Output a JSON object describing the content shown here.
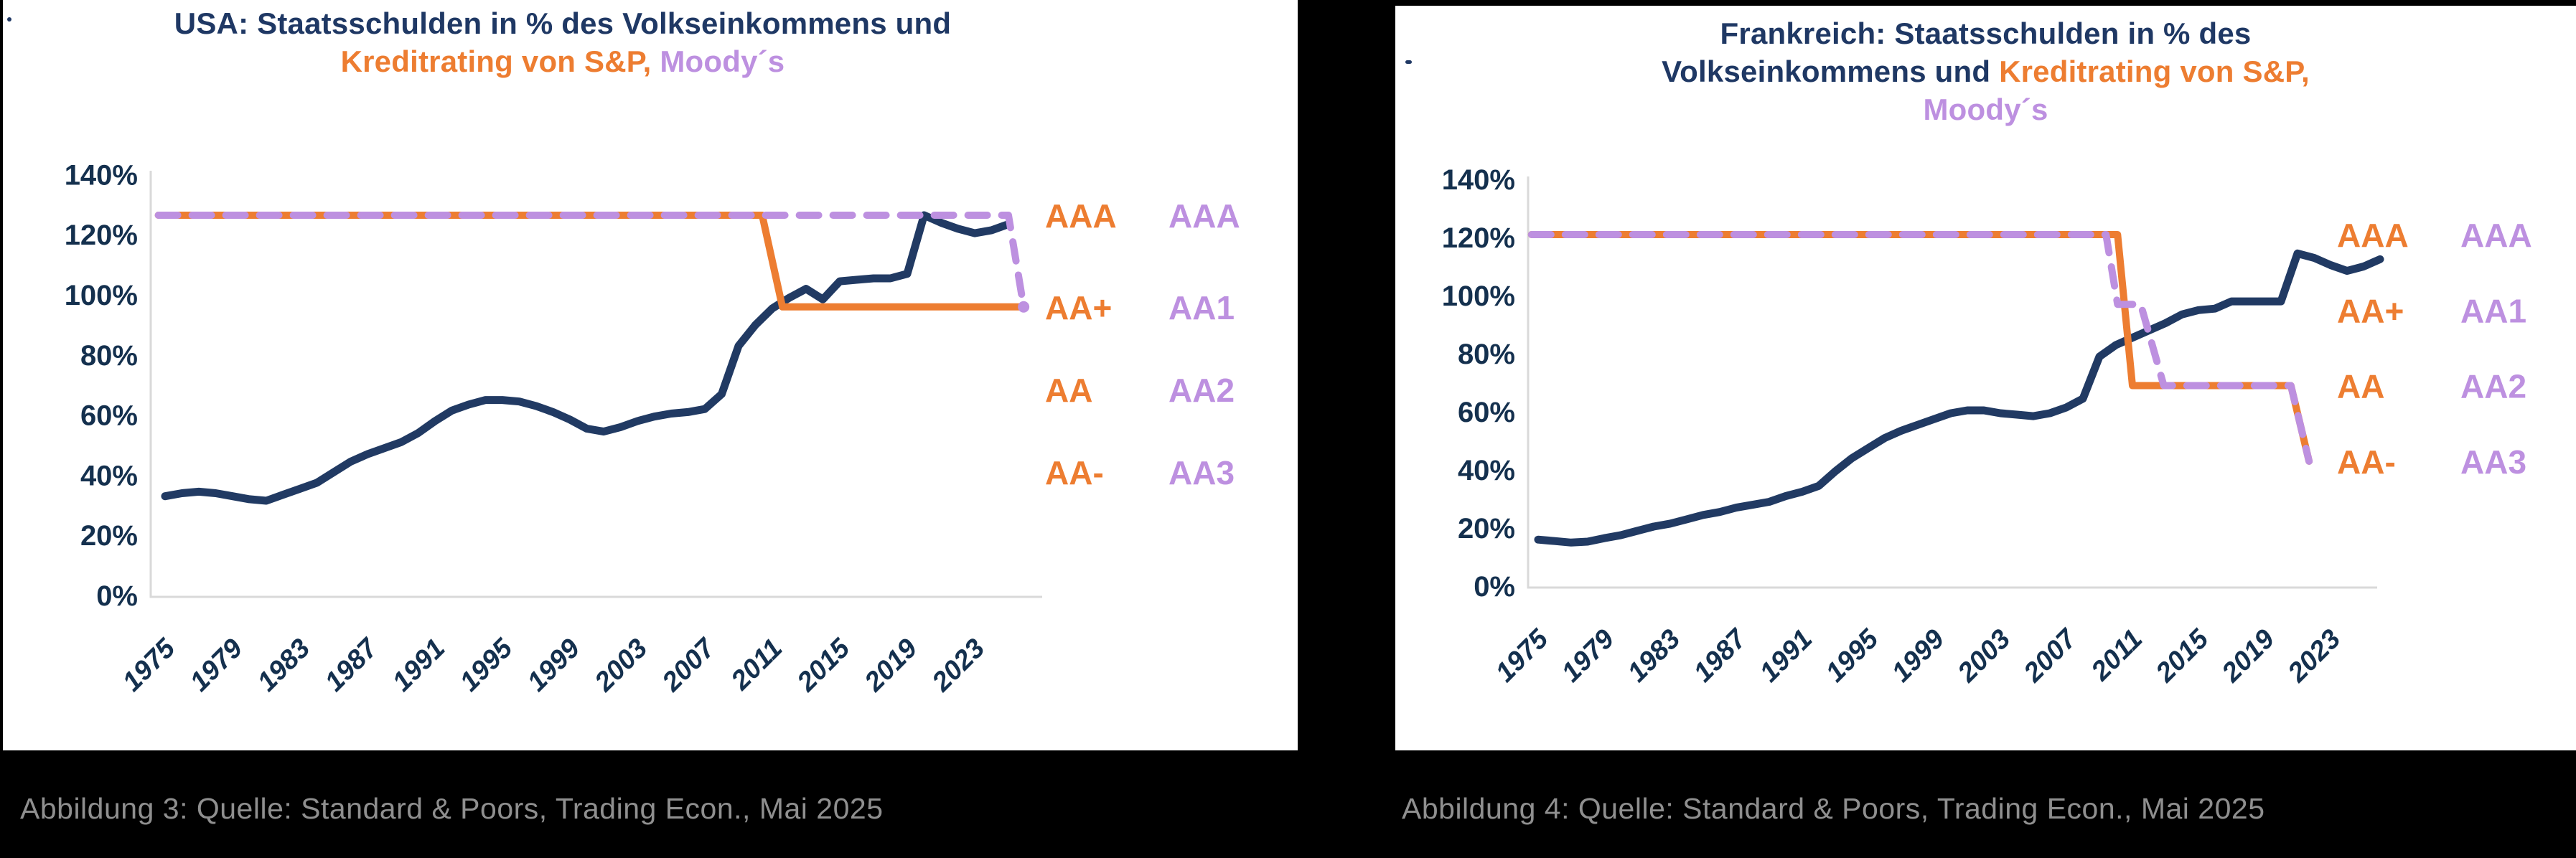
{
  "colors": {
    "navy": "#1F3864",
    "navy_tick": "#14304E",
    "navy_line": "#213A63",
    "orange": "#ED7D31",
    "purple": "#BD90E0",
    "axis_gray": "#D9D9D9",
    "caption_gray": "#8F8F8F",
    "card_bg": "#FFFFFF",
    "page_bg": "#000000"
  },
  "cards": [
    {
      "caption": "Abbildung 3: Quelle: Standard & Poors, Trading Econ., Mai 2025",
      "title_lines": [
        [
          {
            "t": "USA: Staatsschulden in % des Volkseinkommens und",
            "c": "navy"
          }
        ],
        [
          {
            "t": "Kreditrating von S&P, ",
            "c": "orange"
          },
          {
            "t": "Moody´s",
            "c": "purple"
          }
        ]
      ]
    },
    {
      "caption": "Abbildung 4: Quelle: Standard & Poors, Trading Econ., Mai 2025",
      "title_lines": [
        [
          {
            "t": "Frankreich: Staatsschulden in % des",
            "c": "navy"
          }
        ],
        [
          {
            "t": "Volkseinkommens und ",
            "c": "navy"
          },
          {
            "t": "Kreditrating von S&P,",
            "c": "orange"
          }
        ],
        [
          {
            "t": "Moody´s",
            "c": "purple"
          }
        ]
      ]
    }
  ],
  "chart_data": [
    {
      "type": "line",
      "title": "USA: Staatsschulden in % des Volkseinkommens und Kreditrating von S&P, Moody´s",
      "xlabel": "",
      "ylabel": "",
      "ylim": [
        0,
        140
      ],
      "y_ticks_percent": [
        0,
        20,
        40,
        60,
        80,
        100,
        120,
        140
      ],
      "y_tick_suffix": "%",
      "x_tick_years": [
        1975,
        1979,
        1983,
        1987,
        1991,
        1995,
        1999,
        2003,
        2007,
        2011,
        2015,
        2019,
        2023
      ],
      "grid": false,
      "legend_position": "none",
      "series": [
        {
          "name": "Staatsschulden in % des Volkseinkommens",
          "kind": "debt",
          "color": "navy_line",
          "style": "solid",
          "x_start_year": 1975,
          "values": [
            33,
            34,
            34.5,
            34,
            33,
            32,
            31.5,
            33.5,
            35.5,
            37.5,
            41,
            44.5,
            47,
            49,
            51,
            54,
            58,
            61.5,
            63.5,
            65,
            65,
            64.5,
            63,
            61,
            58.5,
            55.5,
            54.5,
            56,
            58,
            59.5,
            60.5,
            61,
            62,
            67,
            83,
            90,
            95.5,
            99,
            102,
            98.5,
            104.5,
            105,
            105.5,
            105.5,
            107,
            126.5,
            124,
            122,
            120.5,
            121.5,
            123.5
          ]
        },
        {
          "name": "Kreditrating von S&P",
          "kind": "rating",
          "agency": "S&P",
          "color": "orange",
          "style": "solid",
          "points": [
            [
              1974.6,
              126.5
            ],
            [
              2010.4,
              126.5
            ],
            [
              2011.6,
              96
            ],
            [
              2025.9,
              96
            ]
          ]
        },
        {
          "name": "Kreditrating von Moody´s",
          "kind": "rating",
          "agency": "Moody´s",
          "color": "purple",
          "style": "dashed",
          "end_dot": true,
          "points": [
            [
              1974.6,
              126.5
            ],
            [
              2025.0,
              126.5
            ],
            [
              2025.9,
              96
            ]
          ]
        }
      ],
      "rating_axis": {
        "sp_labels": [
          "AAA",
          "AA+",
          "AA",
          "AA-"
        ],
        "moodys_labels": [
          "AAA",
          "AA1",
          "AA2",
          "AA3"
        ],
        "levels_percent": [
          126.5,
          96,
          68.5,
          41
        ]
      }
    },
    {
      "type": "line",
      "title": "Frankreich: Staatsschulden in % des Volkseinkommens und Kreditrating von S&P, Moody´s",
      "xlabel": "",
      "ylabel": "",
      "ylim": [
        0,
        140
      ],
      "y_ticks_percent": [
        0,
        20,
        40,
        60,
        80,
        100,
        120,
        140
      ],
      "y_tick_suffix": "%",
      "x_tick_years": [
        1975,
        1979,
        1983,
        1987,
        1991,
        1995,
        1999,
        2003,
        2007,
        2011,
        2015,
        2019,
        2023
      ],
      "grid": false,
      "legend_position": "none",
      "series": [
        {
          "name": "Staatsschulden in % des Volkseinkommens",
          "kind": "debt",
          "color": "navy_line",
          "style": "solid",
          "x_start_year": 1975,
          "values": [
            16,
            15.5,
            15,
            15.3,
            16.5,
            17.5,
            19,
            20.5,
            21.5,
            23,
            24.5,
            25.5,
            27,
            28,
            29,
            31,
            32.5,
            34.5,
            39.5,
            44,
            47.5,
            51,
            53.5,
            55.5,
            57.5,
            59.5,
            60.5,
            60.5,
            59.5,
            59,
            58.5,
            59.5,
            61.5,
            64.5,
            79,
            83,
            85.5,
            88,
            90.5,
            93.5,
            95,
            95.5,
            98,
            98,
            98,
            98,
            114.5,
            113,
            110.5,
            108.5,
            110,
            112.5
          ]
        },
        {
          "name": "Kreditrating von S&P",
          "kind": "rating",
          "agency": "S&P",
          "color": "orange",
          "style": "solid",
          "points": [
            [
              1974.6,
              121
            ],
            [
              2010.1,
              121
            ],
            [
              2011.0,
              69
            ],
            [
              2020.6,
              69
            ],
            [
              2021.7,
              43
            ]
          ]
        },
        {
          "name": "Kreditrating von Moody´s",
          "kind": "rating",
          "agency": "Moody´s",
          "color": "purple",
          "style": "dashed",
          "end_dot": false,
          "points": [
            [
              1974.6,
              121
            ],
            [
              2009.4,
              121
            ],
            [
              2010.1,
              97
            ],
            [
              2011.5,
              97
            ],
            [
              2012.9,
              69
            ],
            [
              2020.6,
              69
            ],
            [
              2021.7,
              43
            ]
          ]
        }
      ],
      "rating_axis": {
        "sp_labels": [
          "AAA",
          "AA+",
          "AA",
          "AA-"
        ],
        "moodys_labels": [
          "AAA",
          "AA1",
          "AA2",
          "AA3"
        ],
        "levels_percent": [
          121,
          95,
          69,
          43
        ]
      }
    }
  ]
}
